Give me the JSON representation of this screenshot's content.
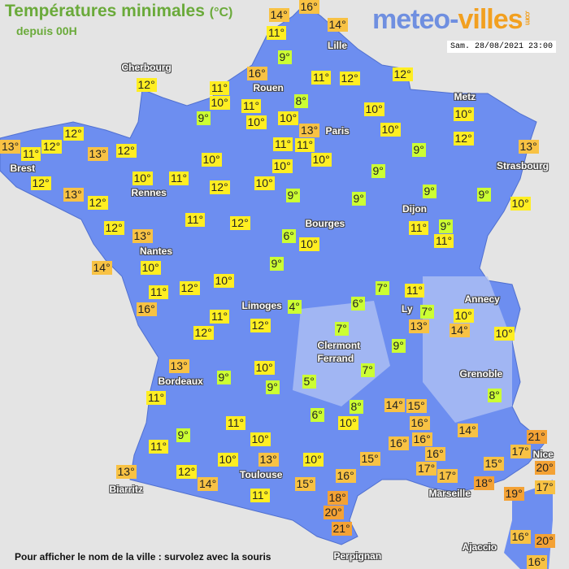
{
  "title": "Températures minimales",
  "unit": "(°C)",
  "subtitle": "depuis 00H",
  "logo": {
    "part1": "meteo-",
    "part2": "villes",
    "com": ".com"
  },
  "datetime": "Sam. 28/08/2021 23:00",
  "footer": "Pour afficher le nom de la ville : survolez avec la souris",
  "colors": {
    "cold": "#ccff33",
    "mild": "#ffee22",
    "warm": "#f8c244",
    "hot": "#f4a235",
    "land": "#6d8ef0",
    "sea": "#e4e4e4"
  },
  "cities": [
    "Cherbourg",
    "Rouen",
    "Lille",
    "Paris",
    "Metz",
    "Strasbourg",
    "Brest",
    "Rennes",
    "Nantes",
    "Bourges",
    "Dijon",
    "Limoges",
    "Ly",
    "Annecy",
    "Clermont",
    "Ferrand",
    "Grenoble",
    "Bordeaux",
    "Toulouse",
    "Biarritz",
    "Marseille",
    "Nice",
    "Perpignan",
    "Ajaccio"
  ],
  "temperatures": [
    14,
    16,
    11,
    14,
    9,
    16,
    11,
    12,
    12,
    12,
    11,
    10,
    8,
    11,
    10,
    10,
    9,
    10,
    10,
    13,
    10,
    12,
    12,
    13,
    12,
    11,
    13,
    12,
    11,
    11,
    10,
    9,
    13,
    10,
    10,
    9,
    10,
    11,
    10,
    12,
    12,
    13,
    12,
    9,
    9,
    9,
    9,
    10,
    11,
    12,
    12,
    13,
    11,
    9,
    11,
    6,
    10,
    14,
    9,
    10,
    12,
    10,
    7,
    11,
    11,
    6,
    4,
    7,
    10,
    16,
    11,
    13,
    14,
    12,
    12,
    7,
    10,
    9,
    13,
    7,
    10,
    9,
    5,
    9,
    11,
    8,
    8,
    14,
    15,
    6,
    10,
    16,
    11,
    9,
    10,
    14,
    16,
    16,
    21,
    17,
    11,
    10,
    13,
    10,
    15,
    16,
    20,
    17,
    17,
    15,
    16,
    13,
    12,
    14,
    15,
    18,
    19,
    17,
    11,
    18,
    20,
    21,
    16,
    20,
    16
  ]
}
